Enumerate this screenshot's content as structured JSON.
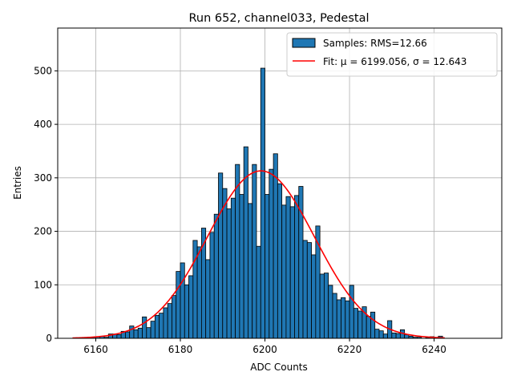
{
  "chart_data": {
    "type": "bar",
    "title": "Run 652, channel033, Pedestal",
    "xlabel": "ADC Counts",
    "ylabel": "Entries",
    "xlim": [
      6151,
      6256
    ],
    "ylim": [
      0,
      580
    ],
    "xticks": [
      "6160",
      "6180",
      "6200",
      "6220",
      "6240"
    ],
    "yticks": [
      "0",
      "100",
      "200",
      "300",
      "400",
      "500"
    ],
    "grid": true,
    "legend_position": "top-right",
    "series": [
      {
        "name": "Samples: RMS=12.66",
        "kind": "histogram",
        "color": "#1f77b4",
        "edge_color": "#000000",
        "bin_start": 6155,
        "bin_width": 1,
        "values": [
          1,
          0,
          0,
          1,
          2,
          3,
          4,
          2,
          8,
          8,
          7,
          13,
          12,
          23,
          16,
          19,
          40,
          20,
          32,
          43,
          47,
          57,
          65,
          80,
          125,
          141,
          100,
          117,
          183,
          171,
          206,
          147,
          198,
          232,
          309,
          280,
          242,
          262,
          325,
          269,
          358,
          252,
          325,
          172,
          505,
          269,
          316,
          345,
          289,
          249,
          265,
          246,
          267,
          284,
          183,
          179,
          156,
          210,
          120,
          122,
          99,
          84,
          72,
          76,
          70,
          99,
          56,
          51,
          59,
          41,
          49,
          17,
          14,
          8,
          33,
          10,
          9,
          16,
          7,
          4,
          2,
          2,
          0,
          1,
          3,
          1,
          4
        ]
      },
      {
        "name": "Fit: μ = 6199.056, σ = 12.643",
        "kind": "gaussian-fit",
        "color": "#ff0000",
        "mu": 6199.056,
        "sigma": 12.643,
        "amplitude": 313,
        "x_range": [
          6154.5,
          6242.5
        ]
      }
    ]
  }
}
